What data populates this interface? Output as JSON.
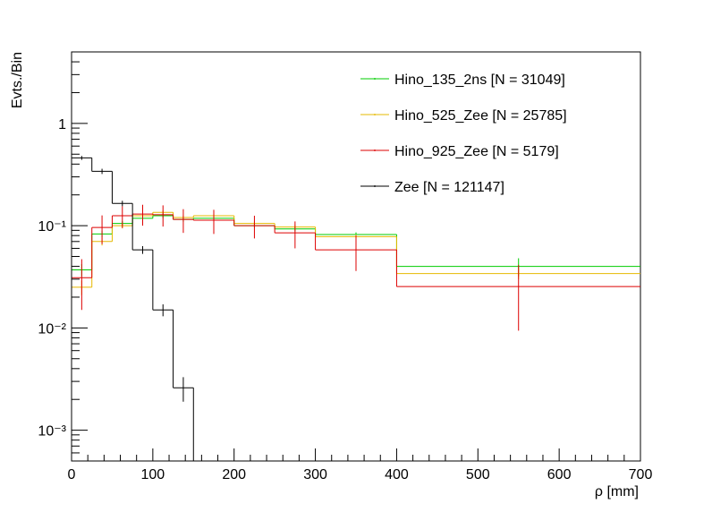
{
  "chart_data": {
    "type": "histogram",
    "xlabel": "ρ [mm]",
    "ylabel": "Evts./Bin",
    "log_y": true,
    "bins": [
      0,
      25,
      50,
      75,
      100,
      125,
      150,
      200,
      250,
      300,
      400,
      700
    ],
    "xlim": [
      0,
      700
    ],
    "xticks": [
      0,
      100,
      200,
      300,
      400,
      500,
      600,
      700
    ],
    "ylim": [
      0.0005,
      5
    ],
    "yticks": [
      {
        "value": 0.001,
        "label": "10⁻³"
      },
      {
        "value": 0.01,
        "label": "10⁻²"
      },
      {
        "value": 0.1,
        "label": "10⁻¹"
      },
      1
    ],
    "legend": "top-right",
    "series": [
      {
        "name": "Hino_135_2ns [N = 31049]",
        "color": "#00cc00",
        "values": [
          0.037,
          0.083,
          0.105,
          0.118,
          0.125,
          0.115,
          0.118,
          0.1,
          0.093,
          0.082,
          0.04
        ],
        "errors": [
          0.005,
          0.006,
          0.006,
          0.006,
          0.006,
          0.006,
          0.005,
          0.005,
          0.005,
          0.004,
          0.008
        ]
      },
      {
        "name": "Hino_525_Zee [N = 25785]",
        "color": "#e6b800",
        "values": [
          0.025,
          0.07,
          0.1,
          0.125,
          0.135,
          0.12,
          0.125,
          0.105,
          0.097,
          0.078,
          0.034
        ],
        "errors": [
          0.004,
          0.006,
          0.006,
          0.006,
          0.006,
          0.006,
          0.005,
          0.005,
          0.005,
          0.004,
          0.004
        ]
      },
      {
        "name": "Hino_925_Zee [N = 5179]",
        "color": "#dd0000",
        "values": [
          0.031,
          0.096,
          0.125,
          0.13,
          0.128,
          0.115,
          0.113,
          0.1,
          0.085,
          0.058,
          0.0254
        ],
        "errors": [
          0.016,
          0.03,
          0.03,
          0.03,
          0.03,
          0.03,
          0.03,
          0.025,
          0.025,
          0.022,
          0.016
        ]
      },
      {
        "name": "Zee [N = 121147]",
        "color": "#000000",
        "values": [
          0.46,
          0.34,
          0.165,
          0.058,
          0.015,
          0.0026,
          null,
          null,
          null,
          null,
          null
        ],
        "errors": [
          0.02,
          0.02,
          0.01,
          0.005,
          0.002,
          0.0007,
          null,
          null,
          null,
          null,
          null
        ]
      }
    ]
  }
}
